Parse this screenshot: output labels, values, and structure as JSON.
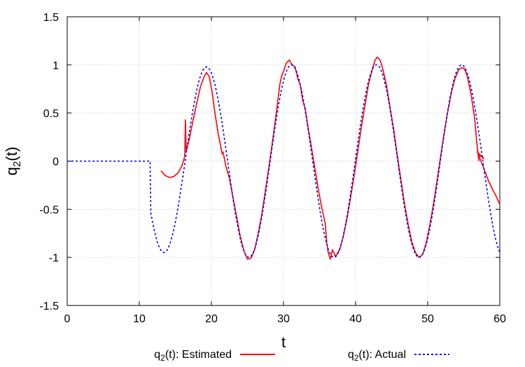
{
  "chart_data": {
    "type": "line",
    "xlabel": "t",
    "ylabel_base": "q",
    "ylabel_sub": "2",
    "ylabel_tail": "(t)",
    "xlim": [
      0,
      60
    ],
    "ylim": [
      -1.5,
      1.5
    ],
    "x_ticks": [
      0,
      10,
      20,
      30,
      40,
      50,
      60
    ],
    "x_tick_labels": [
      "0",
      "10",
      "20",
      "30",
      "40",
      "50",
      "60"
    ],
    "y_ticks": [
      -1.5,
      -1,
      -0.5,
      0,
      0.5,
      1,
      1.5
    ],
    "y_tick_labels": [
      "-1.5",
      "-1",
      "-0.5",
      "0",
      "0.5",
      "1",
      "1.5"
    ],
    "grid": true,
    "legend_position": "bottom",
    "series": [
      {
        "name": "q2(t): Estimated",
        "legend_base": "q",
        "legend_sub": "2",
        "legend_tail": "(t): Estimated",
        "color": "#ff0000",
        "style": "solid",
        "segments": [
          [
            [
              13.0,
              -0.1
            ],
            [
              13.6,
              -0.15
            ],
            [
              14.2,
              -0.17
            ],
            [
              14.8,
              -0.16
            ],
            [
              15.4,
              -0.12
            ],
            [
              15.9,
              -0.05
            ],
            [
              16.3,
              0.05
            ],
            [
              16.4,
              0.43
            ],
            [
              16.5,
              0.1
            ],
            [
              16.9,
              0.22
            ],
            [
              17.4,
              0.4
            ],
            [
              17.9,
              0.58
            ],
            [
              18.5,
              0.78
            ],
            [
              19.0,
              0.88
            ],
            [
              19.3,
              0.92
            ],
            [
              19.7,
              0.88
            ],
            [
              20.1,
              0.72
            ],
            [
              20.5,
              0.5
            ],
            [
              20.9,
              0.3
            ],
            [
              21.3,
              0.15
            ],
            [
              21.5,
              0.07
            ]
          ],
          [
            [
              21.6,
              0.1
            ],
            [
              22.0,
              -0.05
            ],
            [
              22.5,
              -0.18
            ],
            [
              23.0,
              -0.38
            ],
            [
              23.5,
              -0.58
            ],
            [
              24.0,
              -0.78
            ],
            [
              24.5,
              -0.93
            ],
            [
              25.0,
              -1.02
            ],
            [
              25.5,
              -1.01
            ],
            [
              26.0,
              -0.92
            ],
            [
              26.5,
              -0.75
            ],
            [
              27.0,
              -0.55
            ],
            [
              27.5,
              -0.3
            ],
            [
              28.0,
              -0.05
            ],
            [
              28.5,
              0.22
            ],
            [
              29.0,
              0.5
            ],
            [
              29.5,
              0.8
            ],
            [
              29.8,
              0.9
            ],
            [
              30.0,
              0.93
            ],
            [
              30.4,
              1.02
            ],
            [
              30.8,
              1.05
            ],
            [
              31.2,
              1.0
            ],
            [
              31.6,
              0.98
            ],
            [
              32.0,
              0.85
            ],
            [
              32.3,
              0.8
            ],
            [
              32.7,
              0.62
            ],
            [
              33.0,
              0.55
            ],
            [
              33.3,
              0.4
            ],
            [
              33.8,
              0.18
            ],
            [
              34.3,
              -0.05
            ],
            [
              34.8,
              -0.28
            ],
            [
              35.3,
              -0.48
            ],
            [
              35.8,
              -0.65
            ],
            [
              36.0,
              -0.85
            ],
            [
              36.2,
              -0.95
            ],
            [
              36.5,
              -1.02
            ],
            [
              36.8,
              -0.92
            ],
            [
              37.2,
              -0.99
            ],
            [
              37.8,
              -0.92
            ],
            [
              38.3,
              -0.78
            ],
            [
              38.8,
              -0.6
            ],
            [
              39.3,
              -0.38
            ],
            [
              39.8,
              -0.15
            ],
            [
              40.3,
              0.1
            ],
            [
              40.8,
              0.35
            ],
            [
              41.3,
              0.58
            ],
            [
              41.8,
              0.8
            ],
            [
              42.3,
              0.95
            ],
            [
              42.7,
              1.05
            ],
            [
              43.0,
              1.08
            ],
            [
              43.4,
              1.05
            ],
            [
              43.8,
              0.95
            ],
            [
              44.3,
              0.78
            ],
            [
              44.8,
              0.55
            ],
            [
              45.3,
              0.32
            ],
            [
              45.8,
              0.05
            ],
            [
              46.3,
              -0.2
            ],
            [
              46.8,
              -0.45
            ],
            [
              47.3,
              -0.66
            ],
            [
              47.8,
              -0.84
            ],
            [
              48.3,
              -0.95
            ],
            [
              48.8,
              -1.0
            ],
            [
              49.3,
              -0.97
            ],
            [
              49.8,
              -0.85
            ],
            [
              50.3,
              -0.66
            ],
            [
              50.8,
              -0.45
            ],
            [
              51.3,
              -0.2
            ],
            [
              51.8,
              0.05
            ],
            [
              52.3,
              0.3
            ],
            [
              52.8,
              0.52
            ],
            [
              53.3,
              0.72
            ],
            [
              53.8,
              0.86
            ],
            [
              54.3,
              0.95
            ],
            [
              54.7,
              0.97
            ],
            [
              55.1,
              0.96
            ],
            [
              55.5,
              0.88
            ],
            [
              56.0,
              0.7
            ],
            [
              56.5,
              0.45
            ],
            [
              56.8,
              0.2
            ],
            [
              57.1,
              0.0
            ]
          ],
          [
            [
              56.8,
              0.1
            ],
            [
              57.8,
              0.03
            ],
            [
              57.0,
              0.07
            ],
            [
              57.4,
              0.0
            ],
            [
              57.9,
              -0.1
            ],
            [
              58.4,
              -0.2
            ],
            [
              58.9,
              -0.28
            ],
            [
              59.4,
              -0.35
            ],
            [
              60.0,
              -0.45
            ]
          ]
        ]
      },
      {
        "name": "q2(t): Actual",
        "legend_base": "q",
        "legend_sub": "2",
        "legend_tail": "(t): Actual",
        "color": "#0000ff",
        "style": "dashed"
      }
    ]
  }
}
